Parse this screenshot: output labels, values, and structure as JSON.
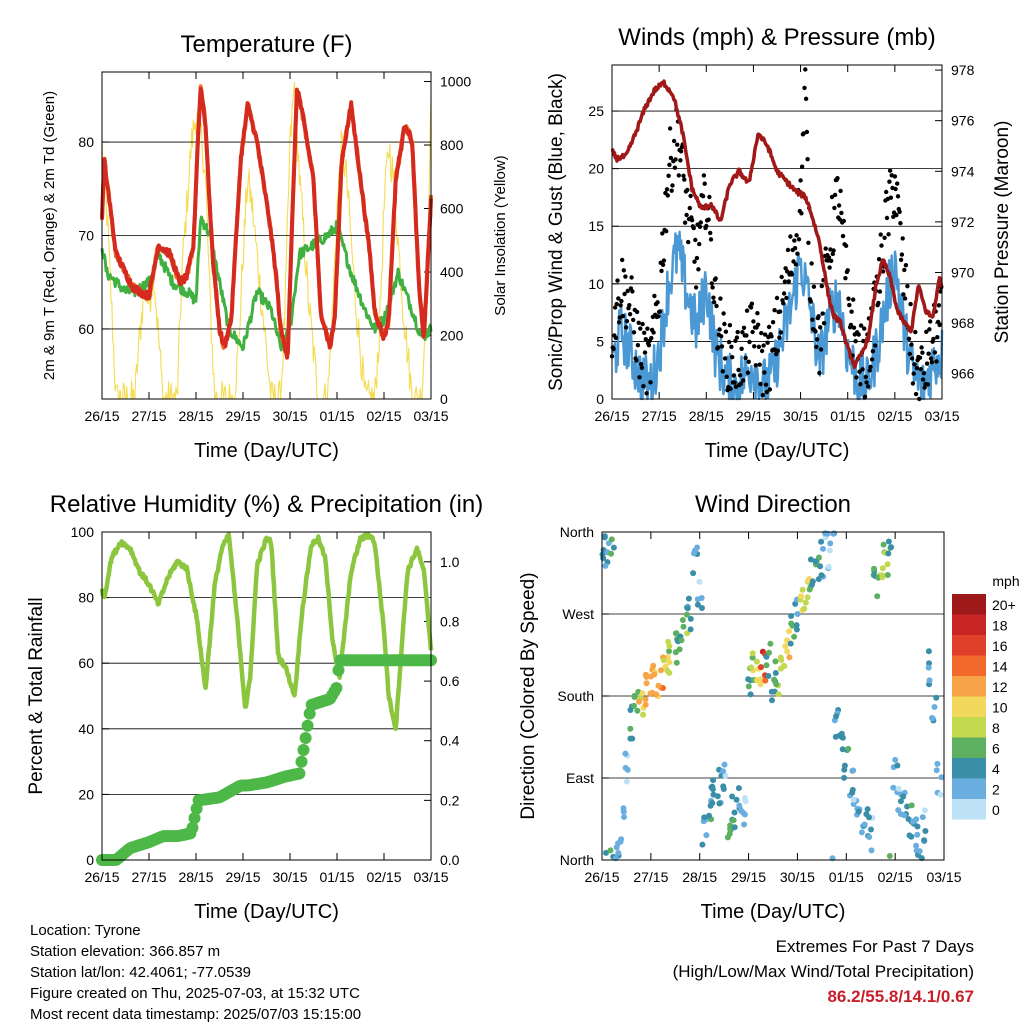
{
  "x_ticks": [
    "26/15",
    "27/15",
    "28/15",
    "29/15",
    "30/15",
    "01/15",
    "02/15",
    "03/15"
  ],
  "colors": {
    "red": "#d42a20",
    "orange": "#f07020",
    "green": "#40b040",
    "yellow": "#f5dc50",
    "blue": "#4a98d4",
    "black": "#000000",
    "maroon": "#a01818",
    "rh_green": "#8cc63f",
    "precip_green": "#4db848"
  },
  "temperature": {
    "title": "Temperature (F)",
    "xlabel": "Time (Day/UTC)",
    "ylabel_left": "2m & 9m T (Red, Orange) & 2m Td (Green)",
    "ylabel_right": "Solar Insolation (Yellow)",
    "left_ticks": [
      "60",
      "70",
      "80"
    ],
    "right_ticks": [
      "0",
      "200",
      "400",
      "600",
      "800",
      "1000"
    ]
  },
  "winds": {
    "title": "Winds (mph) & Pressure (mb)",
    "xlabel": "Time (Day/UTC)",
    "ylabel_left": "Sonic/Prop Wind & Gust (Blue, Black)",
    "ylabel_right": "Station Pressure (Maroon)",
    "left_ticks": [
      "0",
      "5",
      "10",
      "15",
      "20",
      "25"
    ],
    "right_ticks": [
      "966",
      "968",
      "970",
      "972",
      "974",
      "976",
      "978"
    ]
  },
  "humidity": {
    "title": "Relative Humidity (%) & Precipitation (in)",
    "xlabel": "Time (Day/UTC)",
    "ylabel_left": "Percent & Total Rainfall",
    "left_ticks": [
      "0",
      "20",
      "40",
      "60",
      "80",
      "100"
    ],
    "right_ticks": [
      "0.0",
      "0.2",
      "0.4",
      "0.6",
      "0.8",
      "1.0"
    ]
  },
  "direction": {
    "title": "Wind Direction",
    "xlabel": "Time (Day/UTC)",
    "ylabel_left": "Direction (Colored By Speed)",
    "left_ticks": [
      "North",
      "East",
      "South",
      "West",
      "North"
    ],
    "legend_title": "mph",
    "legend_labels": [
      "20+",
      "18",
      "16",
      "14",
      "12",
      "10",
      "8",
      "6",
      "4",
      "2",
      "0"
    ],
    "legend_colors": [
      "#9e1a1a",
      "#c82424",
      "#e0402a",
      "#f26a2c",
      "#f8a448",
      "#f2d85c",
      "#c2d84e",
      "#5cb060",
      "#3a8ea8",
      "#6aaee0",
      "#bde2f6"
    ]
  },
  "info": {
    "location": "Location: Tyrone",
    "elevation": "Station elevation: 366.857 m",
    "latlon": "Station lat/lon: 42.4061; -77.0539",
    "created": "Figure created on Thu, 2025-07-03, at 15:32 UTC",
    "timestamp": "Most recent data timestamp: 2025/07/03 15:15:00"
  },
  "extremes": {
    "line1": "Extremes For Past 7 Days",
    "line2": "(High/Low/Max Wind/Total Precipitation)",
    "values": "86.2/55.8/14.1/0.67"
  },
  "chart_data": [
    {
      "type": "line",
      "title": "Temperature (F)",
      "xlabel": "Time (Day/UTC)",
      "ylabel": "2m & 9m T (Red, Orange) & 2m Td (Green)",
      "y2label": "Solar Insolation (Yellow)",
      "x_range": [
        0,
        7
      ],
      "ylim": [
        52.5,
        87.5
      ],
      "y2lim": [
        0,
        1030
      ],
      "series": [
        {
          "name": "2m & 9m T",
          "axis": "left",
          "x": [
            0,
            0.05,
            0.15,
            0.3,
            0.5,
            0.65,
            0.8,
            1.0,
            1.2,
            1.45,
            1.65,
            1.8,
            1.95,
            2.02,
            2.1,
            2.2,
            2.35,
            2.5,
            2.6,
            2.75,
            2.95,
            3.1,
            3.3,
            3.55,
            3.7,
            3.8,
            3.95,
            4.05,
            4.15,
            4.3,
            4.5,
            4.65,
            4.85,
            4.95,
            5.1,
            5.3,
            5.5,
            5.7,
            5.8,
            6.0,
            6.1,
            6.25,
            6.45,
            6.6,
            6.75,
            6.85,
            7.0
          ],
          "y": [
            72,
            78,
            74,
            68,
            66,
            64.5,
            64,
            63.5,
            69,
            68,
            65,
            65.5,
            69,
            78,
            86,
            82,
            68,
            60,
            58,
            61,
            78,
            84,
            80,
            72,
            66,
            60,
            57,
            72,
            86,
            82,
            76,
            62,
            58,
            61,
            78,
            84,
            76,
            68,
            62,
            59,
            61,
            76,
            82,
            80,
            64,
            59,
            74
          ]
        },
        {
          "name": "2m Td",
          "axis": "left",
          "x": [
            0,
            0.1,
            0.3,
            0.5,
            0.7,
            1.0,
            1.2,
            1.5,
            1.8,
            2.0,
            2.1,
            2.3,
            2.5,
            2.7,
            3.0,
            3.3,
            3.6,
            3.8,
            4.0,
            4.2,
            4.5,
            4.8,
            5.0,
            5.3,
            5.6,
            5.8,
            6.0,
            6.3,
            6.6,
            6.8,
            7.0
          ],
          "y": [
            69,
            66,
            65,
            64,
            64,
            65,
            68,
            65,
            64,
            63,
            72,
            70,
            65,
            60,
            58,
            64,
            62,
            58,
            60,
            68,
            69,
            70,
            71,
            66,
            62,
            60,
            61,
            66,
            62,
            59,
            60
          ]
        },
        {
          "name": "Solar Insolation",
          "axis": "right",
          "x": [
            0,
            0.1,
            0.2,
            0.3,
            0.5,
            0.7,
            0.8,
            0.9,
            1.0,
            1.1,
            1.3,
            1.5,
            1.6,
            1.7,
            1.8,
            1.9,
            2.0,
            2.1,
            2.2,
            2.3,
            2.4,
            2.6,
            2.8,
            2.9,
            3.0,
            3.1,
            3.2,
            3.4,
            3.6,
            3.7,
            3.8,
            3.9,
            4.0,
            4.1,
            4.2,
            4.4,
            4.6,
            4.7,
            4.8,
            4.9,
            5.0,
            5.1,
            5.2,
            5.4,
            5.6,
            5.7,
            5.8,
            5.9,
            6.0,
            6.1,
            6.2,
            6.4,
            6.6,
            6.7,
            6.8,
            6.9,
            7.0
          ],
          "y": [
            800,
            600,
            300,
            0,
            0,
            0,
            200,
            350,
            300,
            400,
            0,
            0,
            0,
            400,
            600,
            800,
            900,
            850,
            700,
            300,
            0,
            0,
            0,
            150,
            450,
            700,
            600,
            300,
            0,
            0,
            0,
            300,
            800,
            1000,
            700,
            300,
            0,
            0,
            0,
            250,
            600,
            800,
            700,
            300,
            0,
            0,
            0,
            200,
            600,
            800,
            700,
            300,
            0,
            0,
            0,
            300,
            900
          ]
        }
      ]
    },
    {
      "type": "line",
      "title": "Winds (mph) & Pressure (mb)",
      "xlabel": "Time (Day/UTC)",
      "ylabel": "Sonic/Prop Wind & Gust (Blue, Black)",
      "y2label": "Station Pressure (Maroon)",
      "x_range": [
        0,
        7
      ],
      "ylim": [
        0,
        29
      ],
      "y2lim": [
        965.0,
        978.2
      ],
      "series": [
        {
          "name": "Sonic/Prop Wind",
          "axis": "left",
          "x": [
            0,
            0.2,
            0.4,
            0.6,
            0.8,
            1.0,
            1.2,
            1.4,
            1.6,
            1.8,
            2.0,
            2.2,
            2.4,
            2.6,
            2.8,
            3.0,
            3.2,
            3.4,
            3.6,
            3.8,
            4.0,
            4.2,
            4.4,
            4.6,
            4.8,
            5.0,
            5.2,
            5.4,
            5.6,
            5.8,
            6.0,
            6.2,
            6.4,
            6.6,
            6.8,
            7.0
          ],
          "y": [
            3,
            6,
            4,
            2,
            1,
            4,
            10,
            13,
            9,
            6,
            10,
            4,
            2,
            1,
            2,
            3,
            1,
            2,
            5,
            8,
            12,
            8,
            3,
            7,
            9,
            4,
            2,
            1,
            4,
            8,
            12,
            6,
            2,
            1,
            3,
            4
          ]
        },
        {
          "name": "Gust",
          "axis": "left",
          "x": [
            0,
            0.2,
            0.4,
            0.6,
            0.8,
            1.0,
            1.2,
            1.4,
            1.6,
            1.8,
            2.0,
            2.2,
            2.4,
            2.6,
            2.8,
            3.0,
            3.2,
            3.4,
            3.6,
            3.8,
            4.0,
            4.1,
            4.2,
            4.4,
            4.6,
            4.8,
            5.0,
            5.2,
            5.4,
            5.6,
            5.8,
            6.0,
            6.2,
            6.4,
            6.6,
            6.8,
            7.0
          ],
          "y": [
            6,
            10,
            8,
            4,
            3,
            9,
            20,
            23,
            16,
            12,
            18,
            8,
            4,
            3,
            4,
            6,
            3,
            4,
            8,
            12,
            17,
            27,
            11,
            5,
            13,
            18,
            9,
            4,
            3,
            8,
            15,
            19,
            10,
            3,
            2,
            5,
            7
          ]
        },
        {
          "name": "Station Pressure",
          "axis": "right",
          "x": [
            0,
            0.1,
            0.3,
            0.5,
            0.7,
            0.9,
            1.1,
            1.3,
            1.5,
            1.7,
            1.9,
            2.1,
            2.3,
            2.5,
            2.7,
            2.9,
            3.1,
            3.3,
            3.5,
            3.7,
            3.9,
            4.1,
            4.2,
            4.4,
            4.6,
            4.7,
            4.85,
            5.0,
            5.15,
            5.3,
            5.45,
            5.6,
            5.75,
            5.9,
            6.05,
            6.2,
            6.35,
            6.5,
            6.65,
            6.8,
            6.95,
            7.0
          ],
          "y": [
            974.8,
            974.5,
            974.6,
            975.5,
            976.5,
            977.2,
            977.5,
            977.0,
            975.5,
            973.3,
            972.5,
            972.7,
            972.0,
            973.5,
            974.0,
            973.5,
            975.5,
            975.0,
            974.0,
            973.6,
            973.2,
            973.0,
            972.5,
            971.2,
            969.0,
            968.3,
            968.0,
            967.0,
            966.3,
            966.8,
            967.5,
            969.5,
            970.5,
            969.8,
            968.5,
            968.0,
            967.7,
            969.5,
            968.5,
            968.2,
            969.8,
            969.5
          ]
        }
      ]
    },
    {
      "type": "line",
      "title": "Relative Humidity (%) & Precipitation (in)",
      "xlabel": "Time (Day/UTC)",
      "ylabel": "Percent & Total Rainfall",
      "x_range": [
        0,
        7
      ],
      "ylim": [
        0,
        100
      ],
      "y2lim": [
        0,
        1.1
      ],
      "series": [
        {
          "name": "Relative Humidity",
          "axis": "left",
          "x": [
            0,
            0.05,
            0.2,
            0.4,
            0.6,
            0.8,
            1.0,
            1.2,
            1.4,
            1.6,
            1.8,
            2.0,
            2.05,
            2.2,
            2.4,
            2.55,
            2.7,
            2.9,
            3.05,
            3.15,
            3.3,
            3.5,
            3.6,
            3.75,
            3.9,
            4.1,
            4.25,
            4.45,
            4.6,
            4.75,
            4.9,
            5.05,
            5.3,
            5.5,
            5.7,
            5.8,
            6.0,
            6.1,
            6.25,
            6.35,
            6.5,
            6.7,
            6.85,
            7.0
          ],
          "y": [
            82,
            80,
            92,
            97,
            95,
            88,
            84,
            78,
            86,
            91,
            89,
            75,
            70,
            52,
            84,
            95,
            99,
            70,
            46,
            55,
            90,
            98,
            97,
            62,
            59,
            50,
            75,
            96,
            98,
            92,
            68,
            55,
            88,
            98,
            99,
            97,
            70,
            50,
            40,
            60,
            88,
            95,
            88,
            64
          ]
        },
        {
          "name": "Total Precipitation",
          "axis": "right",
          "x": [
            0,
            0.3,
            0.6,
            1.0,
            1.3,
            1.6,
            1.9,
            2.05,
            2.5,
            2.95,
            3.1,
            3.5,
            3.9,
            4.2,
            4.3,
            4.45,
            4.65,
            4.85,
            5.0,
            5.05,
            5.2,
            7.0
          ],
          "y": [
            0.0,
            0.0,
            0.04,
            0.06,
            0.08,
            0.08,
            0.09,
            0.2,
            0.21,
            0.25,
            0.25,
            0.26,
            0.28,
            0.29,
            0.38,
            0.52,
            0.53,
            0.54,
            0.58,
            0.67,
            0.67,
            0.67
          ]
        }
      ]
    },
    {
      "type": "scatter",
      "title": "Wind Direction",
      "xlabel": "Time (Day/UTC)",
      "ylabel": "Direction (Colored By Speed)",
      "x_range": [
        0,
        7
      ],
      "ylim": [
        0,
        360
      ],
      "legend": {
        "title": "mph",
        "labels": [
          "20+",
          "18",
          "16",
          "14",
          "12",
          "10",
          "8",
          "6",
          "4",
          "2",
          "0"
        ],
        "placement": "right"
      },
      "series": [
        {
          "name": "Direction",
          "x": [
            0.05,
            0.1,
            0.2,
            0.3,
            0.4,
            0.5,
            0.6,
            0.7,
            0.8,
            0.9,
            1.0,
            1.1,
            1.2,
            1.3,
            1.4,
            1.5,
            1.6,
            1.7,
            1.8,
            1.9,
            2.0,
            2.1,
            2.2,
            2.3,
            2.4,
            2.5,
            2.6,
            2.7,
            2.8,
            2.9,
            3.0,
            3.1,
            3.2,
            3.3,
            3.4,
            3.5,
            3.6,
            3.7,
            3.8,
            3.9,
            4.0,
            4.1,
            4.2,
            4.3,
            4.4,
            4.5,
            4.6,
            4.7,
            4.8,
            4.9,
            5.0,
            5.1,
            5.2,
            5.3,
            5.4,
            5.5,
            5.6,
            5.7,
            5.8,
            5.9,
            6.0,
            6.1,
            6.2,
            6.3,
            6.4,
            6.5,
            6.6,
            6.7,
            6.8,
            6.9
          ],
          "y": [
            350,
            340,
            355,
            20,
            40,
            100,
            150,
            170,
            175,
            185,
            195,
            195,
            205,
            210,
            220,
            230,
            240,
            260,
            270,
            330,
            290,
            35,
            60,
            70,
            80,
            90,
            30,
            55,
            60,
            50,
            200,
            210,
            205,
            215,
            220,
            190,
            200,
            210,
            240,
            250,
            270,
            290,
            300,
            310,
            320,
            330,
            340,
            350,
            150,
            130,
            110,
            80,
            60,
            45,
            40,
            30,
            300,
            320,
            330,
            350,
            90,
            70,
            60,
            40,
            30,
            20,
            40,
            210,
            160,
            90
          ],
          "speed": [
            4,
            3,
            5,
            3,
            2,
            2,
            4,
            6,
            10,
            13,
            12,
            11,
            12,
            10,
            8,
            6,
            5,
            6,
            4,
            3,
            2,
            3,
            4,
            4,
            3,
            2,
            5,
            4,
            3,
            2,
            6,
            8,
            10,
            16,
            6,
            4,
            6,
            8,
            10,
            6,
            4,
            8,
            10,
            6,
            4,
            3,
            2,
            2,
            3,
            4,
            4,
            3,
            2,
            3,
            4,
            2,
            6,
            8,
            7,
            5,
            3,
            2,
            3,
            4,
            2,
            3,
            2,
            4,
            3,
            2
          ]
        }
      ]
    }
  ]
}
